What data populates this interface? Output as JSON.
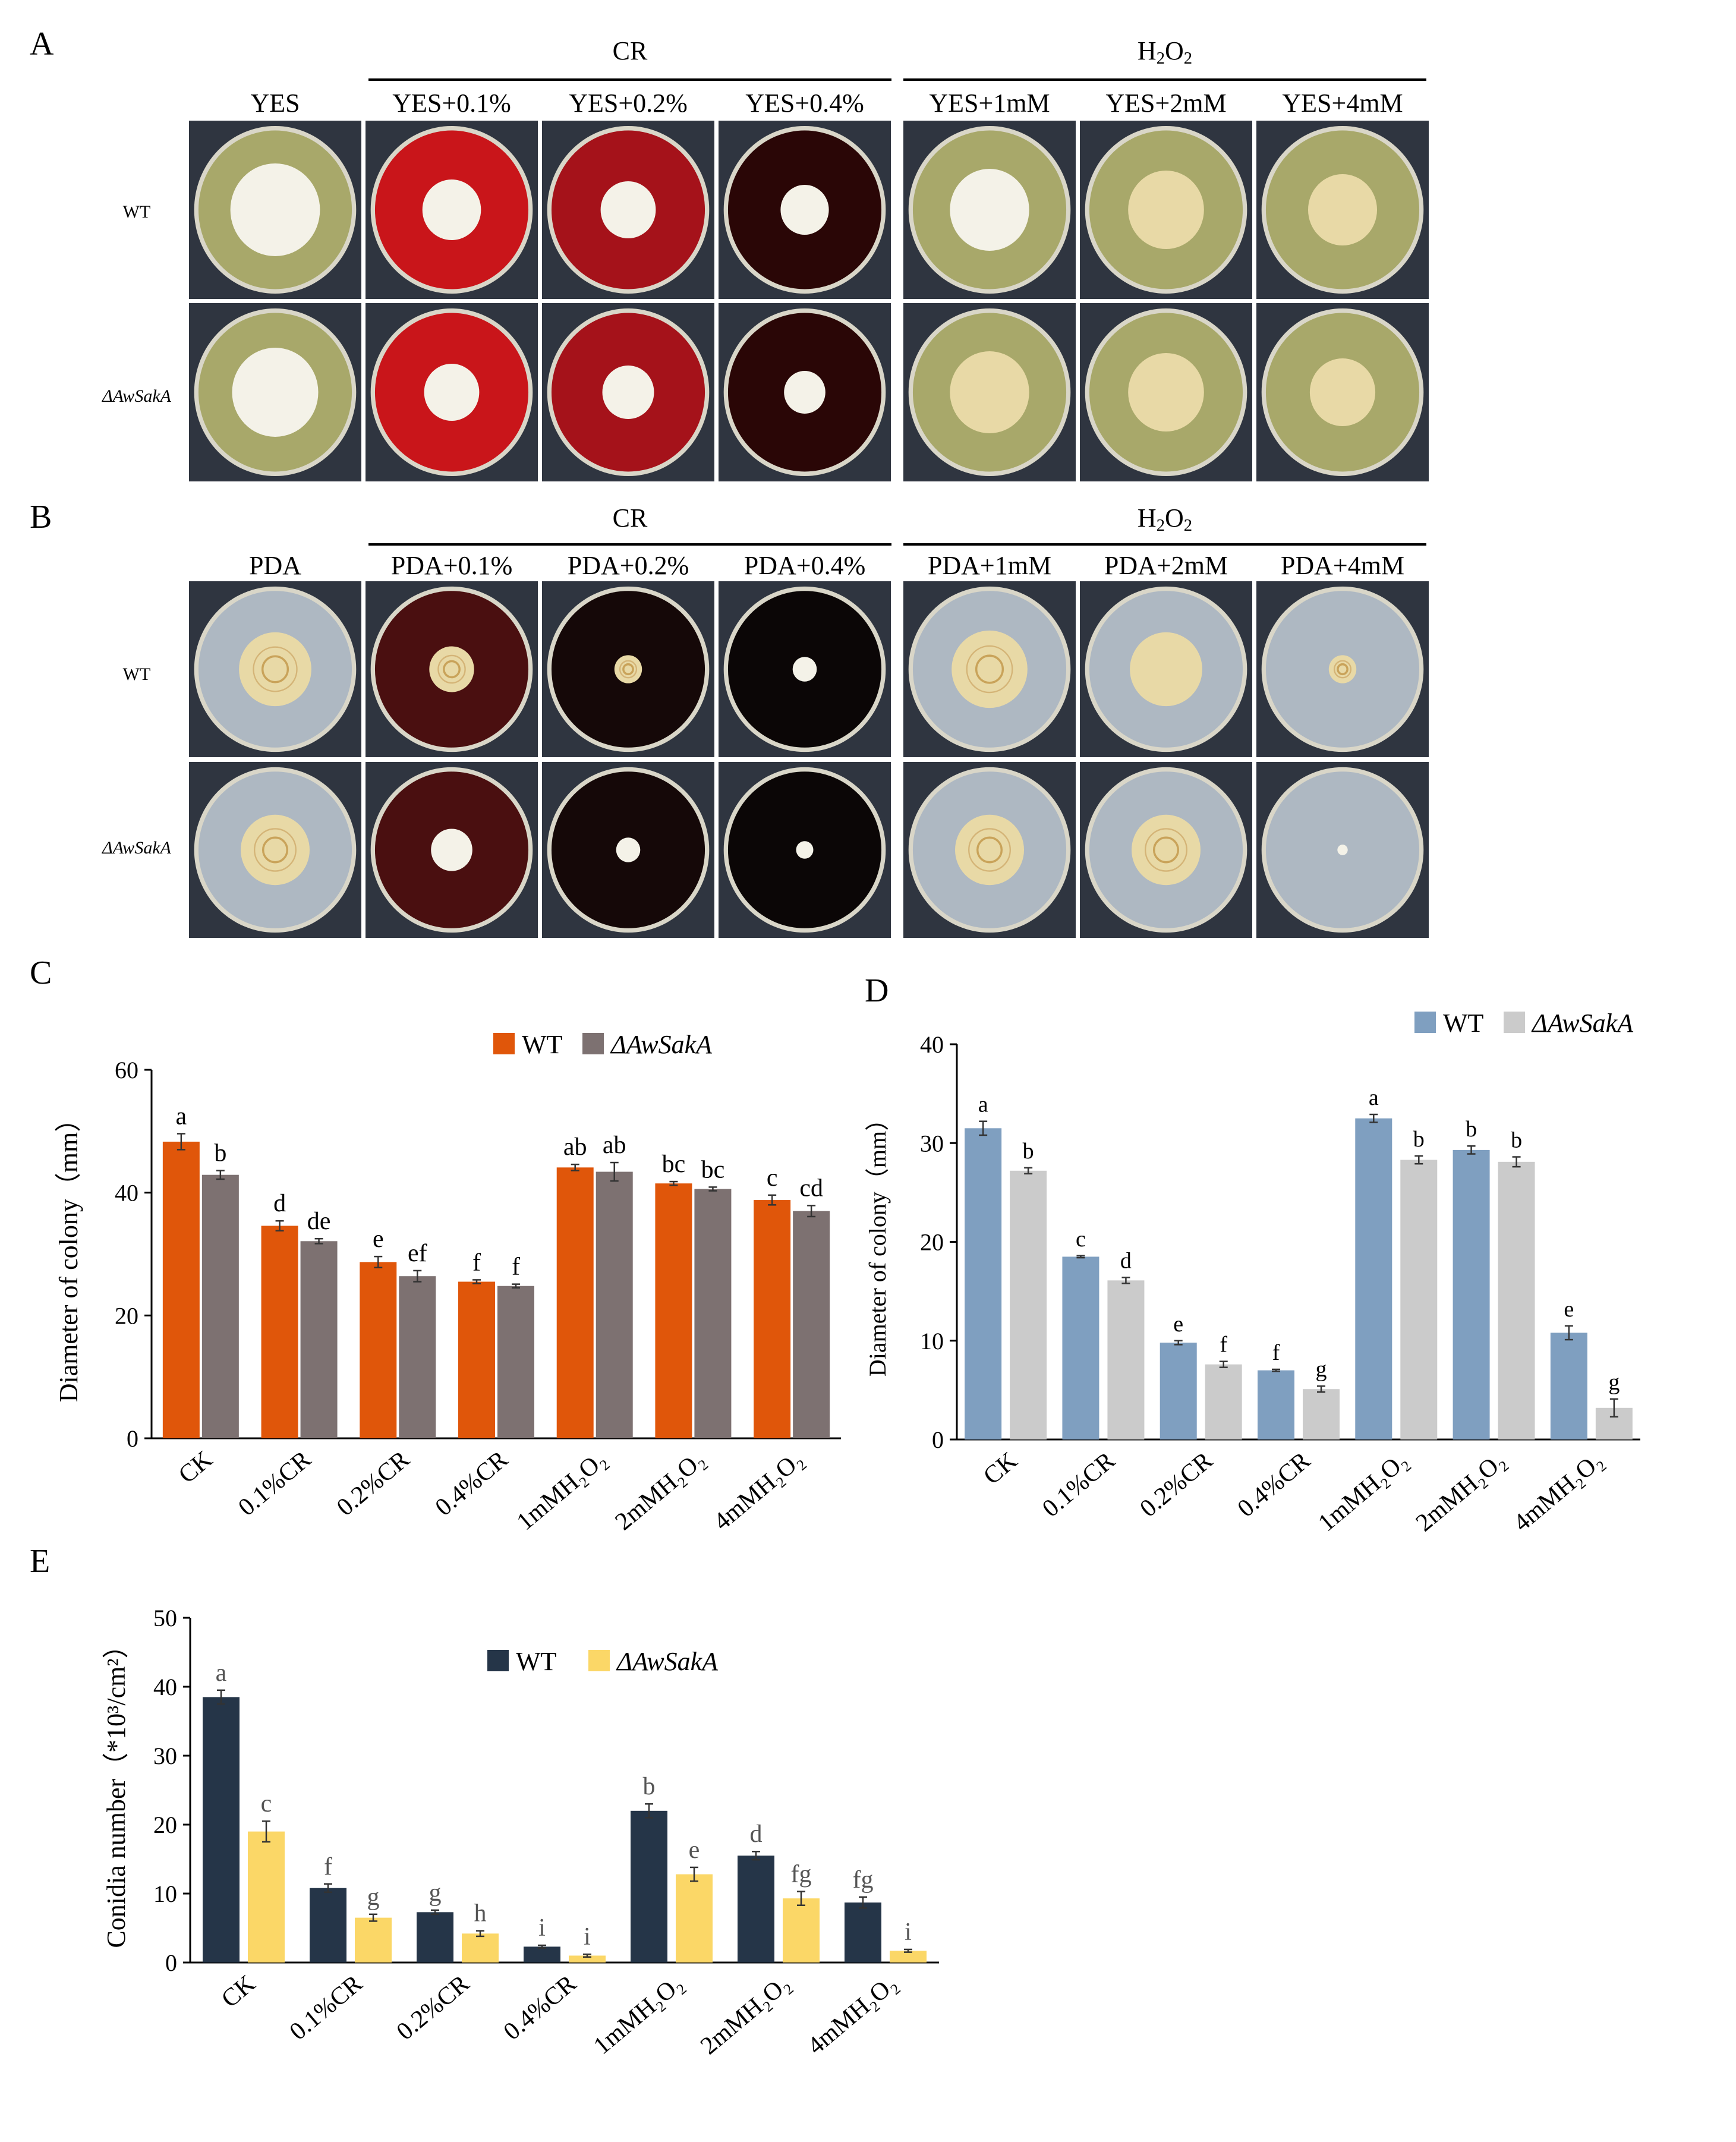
{
  "panel_A": {
    "letter": "A",
    "groups": [
      {
        "label": "CR"
      },
      {
        "label": "H",
        "sub": "2",
        "label2": "O",
        "sub2": "2"
      }
    ],
    "columns": [
      "YES",
      "YES+0.1%",
      "YES+0.2%",
      "YES+0.4%",
      "YES+1mM",
      "YES+2mM",
      "YES+4mM"
    ],
    "rows": [
      "WT",
      "ΔAwSakA"
    ]
  },
  "panel_B": {
    "letter": "B",
    "groups": [
      {
        "label": "CR"
      },
      {
        "label": "H",
        "sub": "2",
        "label2": "O",
        "sub2": "2"
      }
    ],
    "columns": [
      "PDA",
      "PDA+0.1%",
      "PDA+0.2%",
      "PDA+0.4%",
      "PDA+1mM",
      "PDA+2mM",
      "PDA+4mM"
    ],
    "rows": [
      "WT",
      "ΔAwSakA"
    ]
  },
  "plate_colors": {
    "bg": "#2f3540",
    "yes_medium": "#a8a86a",
    "cr01": "#c9151a",
    "cr02": "#a5121a",
    "cr04": "#2a0606",
    "pda_medium": "#aeb8c2",
    "pda_cr01": "#4a0f10",
    "pda_cr02": "#150808",
    "pda_cr04": "#0b0606",
    "colony_white": "#f4f2e8",
    "colony_yellow": "#e8d9a6"
  },
  "chart_data": [
    {
      "panel": "C",
      "type": "bar",
      "categories": [
        "CK",
        "0.1%CR",
        "0.2%CR",
        "0.4%CR",
        "1mMH₂O₂",
        "2mMH₂O₂",
        "4mMH₂O₂"
      ],
      "series": [
        {
          "name": "WT",
          "color": "#e0560a",
          "values": [
            48.3,
            34.6,
            28.7,
            25.5,
            44.1,
            41.5,
            38.8
          ],
          "errors": [
            1.3,
            0.8,
            0.9,
            0.3,
            0.5,
            0.3,
            0.8
          ],
          "letters": [
            "a",
            "d",
            "e",
            "f",
            "ab",
            "bc",
            "c"
          ]
        },
        {
          "name": "ΔAwSakA",
          "color": "#7d7171",
          "values": [
            42.9,
            32.1,
            26.4,
            24.8,
            43.4,
            40.6,
            37.0
          ],
          "errors": [
            0.7,
            0.4,
            0.9,
            0.3,
            1.5,
            0.3,
            0.9
          ],
          "letters": [
            "b",
            "de",
            "ef",
            "f",
            "ab",
            "bc",
            "cd"
          ]
        }
      ],
      "ylabel": "Diameter of colony（mm）",
      "ylim": [
        0,
        60
      ],
      "yticks": [
        0,
        20,
        40,
        60
      ],
      "legend": "top-center"
    },
    {
      "panel": "D",
      "type": "bar",
      "categories": [
        "CK",
        "0.1%CR",
        "0.2%CR",
        "0.4%CR",
        "1mMH₂O₂",
        "2mMH₂O₂",
        "4mMH₂O₂"
      ],
      "series": [
        {
          "name": "WT",
          "color": "#7f9fc0",
          "values": [
            31.5,
            18.5,
            9.8,
            7.0,
            32.5,
            29.3,
            10.8
          ],
          "errors": [
            0.7,
            0.1,
            0.2,
            0.1,
            0.4,
            0.4,
            0.7
          ],
          "letters": [
            "a",
            "c",
            "e",
            "f",
            "a",
            "b",
            "e"
          ]
        },
        {
          "name": "ΔAwSakA",
          "color": "#cbcbcb",
          "values": [
            27.2,
            16.1,
            7.6,
            5.1,
            28.3,
            28.1,
            3.2
          ],
          "errors": [
            0.3,
            0.3,
            0.3,
            0.3,
            0.4,
            0.5,
            0.9
          ],
          "letters": [
            "b",
            "d",
            "f",
            "g",
            "b",
            "b",
            "g"
          ]
        }
      ],
      "ylabel": "Diameter of colony（mm）",
      "ylim": [
        0,
        40
      ],
      "yticks": [
        0,
        10,
        20,
        30,
        40
      ],
      "legend": "top-center"
    },
    {
      "panel": "E",
      "type": "bar",
      "categories": [
        "CK",
        "0.1%CR",
        "0.2%CR",
        "0.4%CR",
        "1mMH₂O₂",
        "2mMH₂O₂",
        "4mMH₂O₂"
      ],
      "series": [
        {
          "name": "WT",
          "color": "#253548",
          "values": [
            38.5,
            10.8,
            7.3,
            2.3,
            22.0,
            15.5,
            8.7
          ],
          "errors": [
            1.0,
            0.6,
            0.3,
            0.2,
            1.0,
            0.6,
            0.8
          ],
          "letters": [
            "a",
            "f",
            "g",
            "i",
            "b",
            "d",
            "fg"
          ]
        },
        {
          "name": "ΔAwSakA",
          "color": "#fbd767",
          "values": [
            19.0,
            6.5,
            4.2,
            1.0,
            12.8,
            9.3,
            1.7
          ],
          "errors": [
            1.5,
            0.5,
            0.4,
            0.2,
            1.0,
            1.0,
            0.2
          ],
          "letters": [
            "c",
            "g",
            "h",
            "i",
            "e",
            "fg",
            "i"
          ]
        }
      ],
      "ylabel": "Conidia number（*10³/cm²）",
      "ylim": [
        0,
        50
      ],
      "yticks": [
        0,
        10,
        20,
        30,
        40,
        50
      ],
      "legend": "top-center"
    }
  ]
}
